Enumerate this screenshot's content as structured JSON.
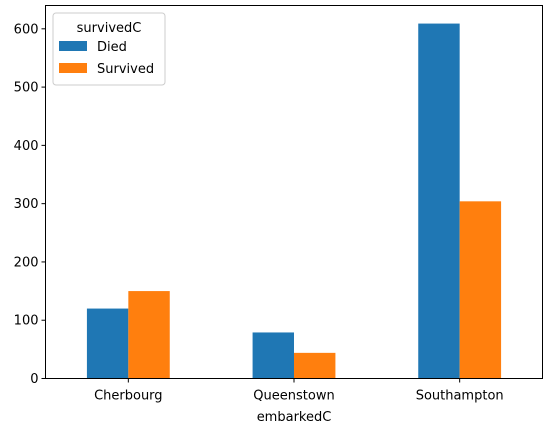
{
  "chart_data": {
    "type": "bar",
    "categories": [
      "Cherbourg",
      "Queenstown",
      "Southampton"
    ],
    "xlabel": "embarkedC",
    "ylabel": "",
    "ylim": [
      0,
      640
    ],
    "yticks": [
      0,
      100,
      200,
      300,
      400,
      500,
      600
    ],
    "grid": false,
    "legend": {
      "title": "survivedC",
      "position": "top-left"
    },
    "series": [
      {
        "name": "Died",
        "color": "#1f77b4",
        "values": [
          120,
          79,
          609
        ]
      },
      {
        "name": "Survived",
        "color": "#ff7f0e",
        "values": [
          150,
          44,
          304
        ]
      }
    ]
  }
}
